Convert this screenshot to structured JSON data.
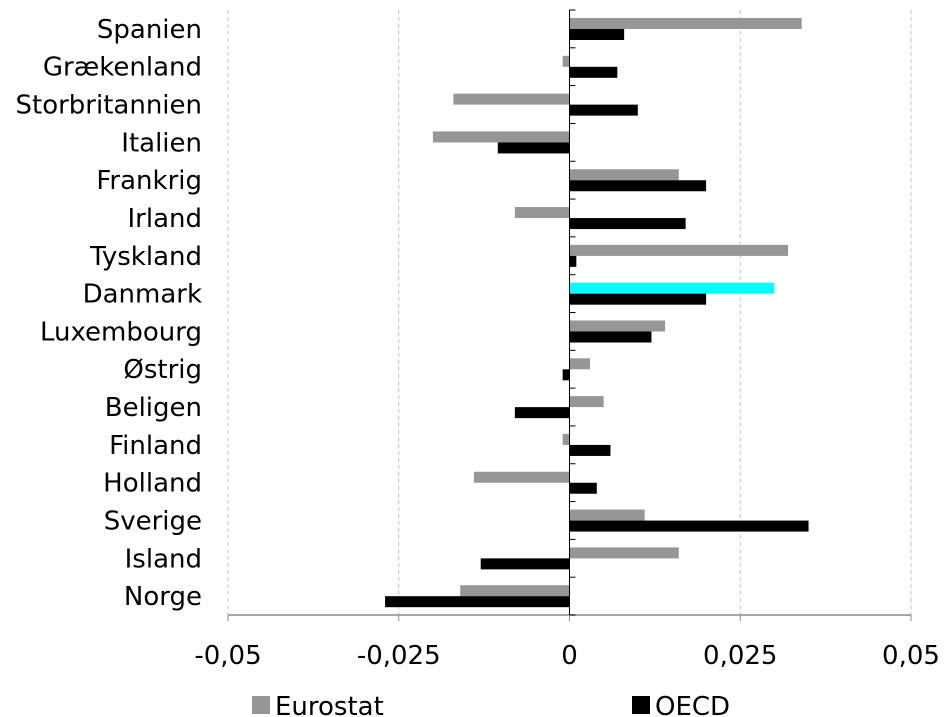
{
  "chart_data": {
    "type": "bar",
    "orientation": "horizontal",
    "categories": [
      "Spanien",
      "Grækenland",
      "Storbritannien",
      "Italien",
      "Frankrig",
      "Irland",
      "Tyskland",
      "Danmark",
      "Luxembourg",
      "Østrig",
      "Beligen",
      "Finland",
      "Holland",
      "Sverige",
      "Island",
      "Norge"
    ],
    "series": [
      {
        "name": "Eurostat",
        "color": "#969696",
        "values": [
          0.034,
          -0.001,
          -0.017,
          -0.02,
          0.016,
          -0.008,
          0.032,
          0.03,
          0.014,
          0.003,
          0.005,
          -0.001,
          -0.014,
          0.011,
          0.016,
          -0.016
        ],
        "highlight": {
          "category": "Danmark",
          "color": "#00ffff"
        }
      },
      {
        "name": "OECD",
        "color": "#000000",
        "values": [
          0.008,
          0.007,
          0.01,
          -0.0105,
          0.02,
          0.017,
          0.001,
          0.02,
          0.012,
          -0.001,
          -0.008,
          0.006,
          0.004,
          0.035,
          -0.013,
          -0.027
        ]
      }
    ],
    "xlim": [
      -0.05,
      0.05
    ],
    "xticks": [
      "-0,05",
      "-0,025",
      "0",
      "0,025",
      "0,05"
    ],
    "xtick_values": [
      -0.05,
      -0.025,
      0,
      0.025,
      0.05
    ],
    "grid": "vertical dashed",
    "legend_position": "bottom"
  }
}
